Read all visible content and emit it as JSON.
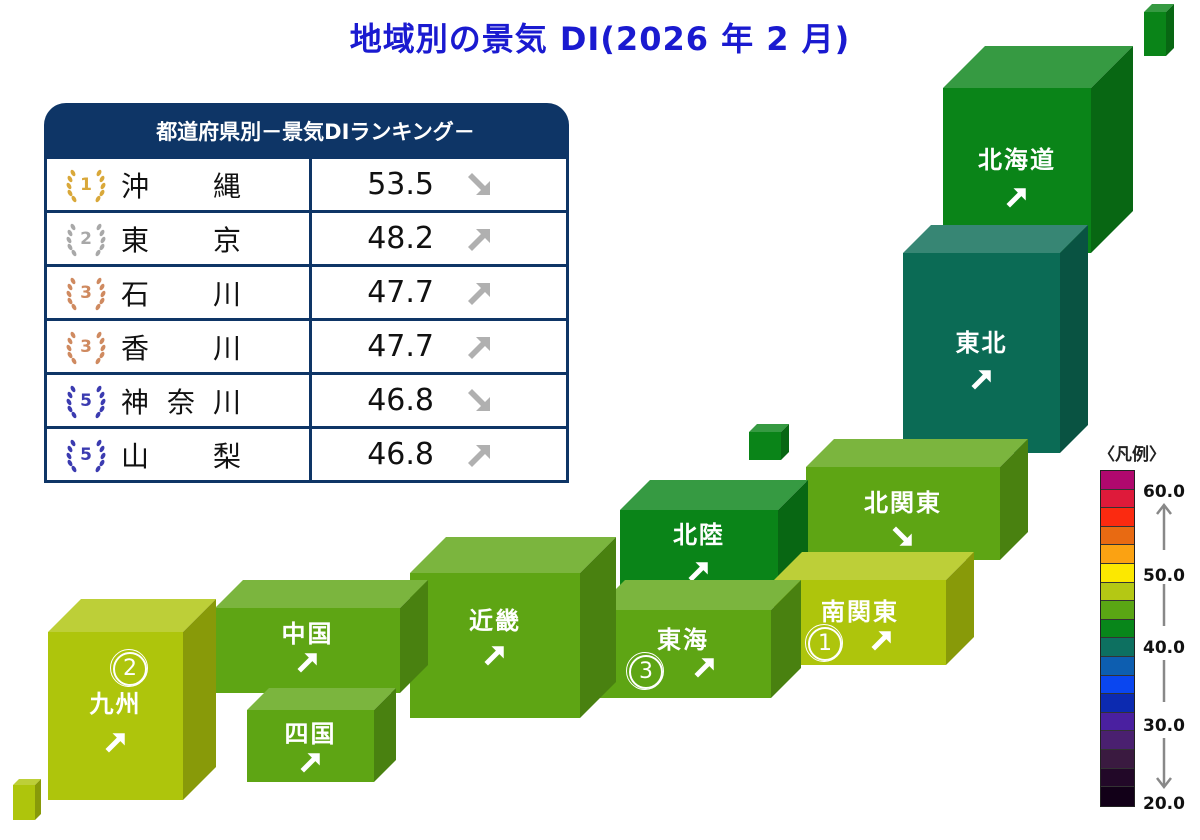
{
  "title": "地域別の景気 DI(2026 年 2 月)",
  "ranking": {
    "header": "都道府県別－景気DIランキング－",
    "rows": [
      {
        "rank": "1",
        "medal": "gold",
        "pref_chars": [
          "沖",
          "縄"
        ],
        "value": "53.5",
        "trend": "down"
      },
      {
        "rank": "2",
        "medal": "silver",
        "pref_chars": [
          "東",
          "京"
        ],
        "value": "48.2",
        "trend": "up"
      },
      {
        "rank": "3",
        "medal": "bronze",
        "pref_chars": [
          "石",
          "川"
        ],
        "value": "47.7",
        "trend": "up"
      },
      {
        "rank": "3",
        "medal": "bronze",
        "pref_chars": [
          "香",
          "川"
        ],
        "value": "47.7",
        "trend": "up"
      },
      {
        "rank": "5",
        "medal": "blue",
        "pref_chars": [
          "神",
          "奈",
          "川"
        ],
        "value": "46.8",
        "trend": "down"
      },
      {
        "rank": "5",
        "medal": "blue",
        "pref_chars": [
          "山",
          "梨"
        ],
        "value": "46.8",
        "trend": "up"
      }
    ]
  },
  "regions": {
    "hokkaido": {
      "label": "北海道",
      "trend": "up",
      "rank_mark": ""
    },
    "tohoku": {
      "label": "東北",
      "trend": "up",
      "rank_mark": ""
    },
    "kita_kanto": {
      "label": "北関東",
      "trend": "down",
      "rank_mark": ""
    },
    "minami_kanto": {
      "label": "南関東",
      "trend": "up",
      "rank_mark": "①"
    },
    "hokuriku": {
      "label": "北陸",
      "trend": "up",
      "rank_mark": ""
    },
    "tokai": {
      "label": "東海",
      "trend": "up",
      "rank_mark": "③"
    },
    "kinki": {
      "label": "近畿",
      "trend": "up",
      "rank_mark": ""
    },
    "chugoku": {
      "label": "中国",
      "trend": "up",
      "rank_mark": ""
    },
    "shikoku": {
      "label": "四国",
      "trend": "up",
      "rank_mark": ""
    },
    "kyushu": {
      "label": "九州",
      "trend": "up",
      "rank_mark": "②"
    }
  },
  "legend": {
    "title": "〈凡例〉",
    "ticks": [
      "60.0",
      "50.0",
      "40.0",
      "30.0",
      "20.0"
    ],
    "colors": [
      "#b0086e",
      "#de1a3a",
      "#fb2a10",
      "#e86a12",
      "#fba212",
      "#fce800",
      "#b4c814",
      "#5aa614",
      "#08861a",
      "#0d7060",
      "#0d5eb0",
      "#0a46f0",
      "#0c2ab0",
      "#4a20a0",
      "#4a2070",
      "#3a1a40",
      "#220828",
      "#120018"
    ]
  },
  "chart_data": {
    "type": "table",
    "title": "地域別の景気 DI(2026 年 2 月)",
    "ranking_title": "都道府県別－景気DIランキング－",
    "columns": [
      "rank",
      "prefecture",
      "DI",
      "trend"
    ],
    "rows": [
      [
        "1",
        "沖縄",
        53.5,
        "down"
      ],
      [
        "2",
        "東京",
        48.2,
        "up"
      ],
      [
        "3",
        "石川",
        47.7,
        "up"
      ],
      [
        "3",
        "香川",
        47.7,
        "up"
      ],
      [
        "5",
        "神奈川",
        46.8,
        "down"
      ],
      [
        "5",
        "山梨",
        46.8,
        "up"
      ]
    ],
    "regions": [
      {
        "name": "北海道",
        "trend": "up",
        "color": "#0a8418"
      },
      {
        "name": "東北",
        "trend": "up",
        "color": "#0b6b55"
      },
      {
        "name": "北関東",
        "trend": "down",
        "color": "#5ea514"
      },
      {
        "name": "南関東",
        "trend": "up",
        "rank": 1,
        "color": "#aec50c"
      },
      {
        "name": "北陸",
        "trend": "up",
        "color": "#0a8418"
      },
      {
        "name": "東海",
        "trend": "up",
        "rank": 3,
        "color": "#5ea514"
      },
      {
        "name": "近畿",
        "trend": "up",
        "color": "#5ea514"
      },
      {
        "name": "中国",
        "trend": "up",
        "color": "#5ea514"
      },
      {
        "name": "四国",
        "trend": "up",
        "color": "#5ea514"
      },
      {
        "name": "九州",
        "trend": "up",
        "rank": 2,
        "color": "#aec50c"
      }
    ],
    "legend": {
      "title": "凡例",
      "min": 20.0,
      "max": 60.0,
      "ticks": [
        60.0,
        50.0,
        40.0,
        30.0,
        20.0
      ]
    }
  }
}
